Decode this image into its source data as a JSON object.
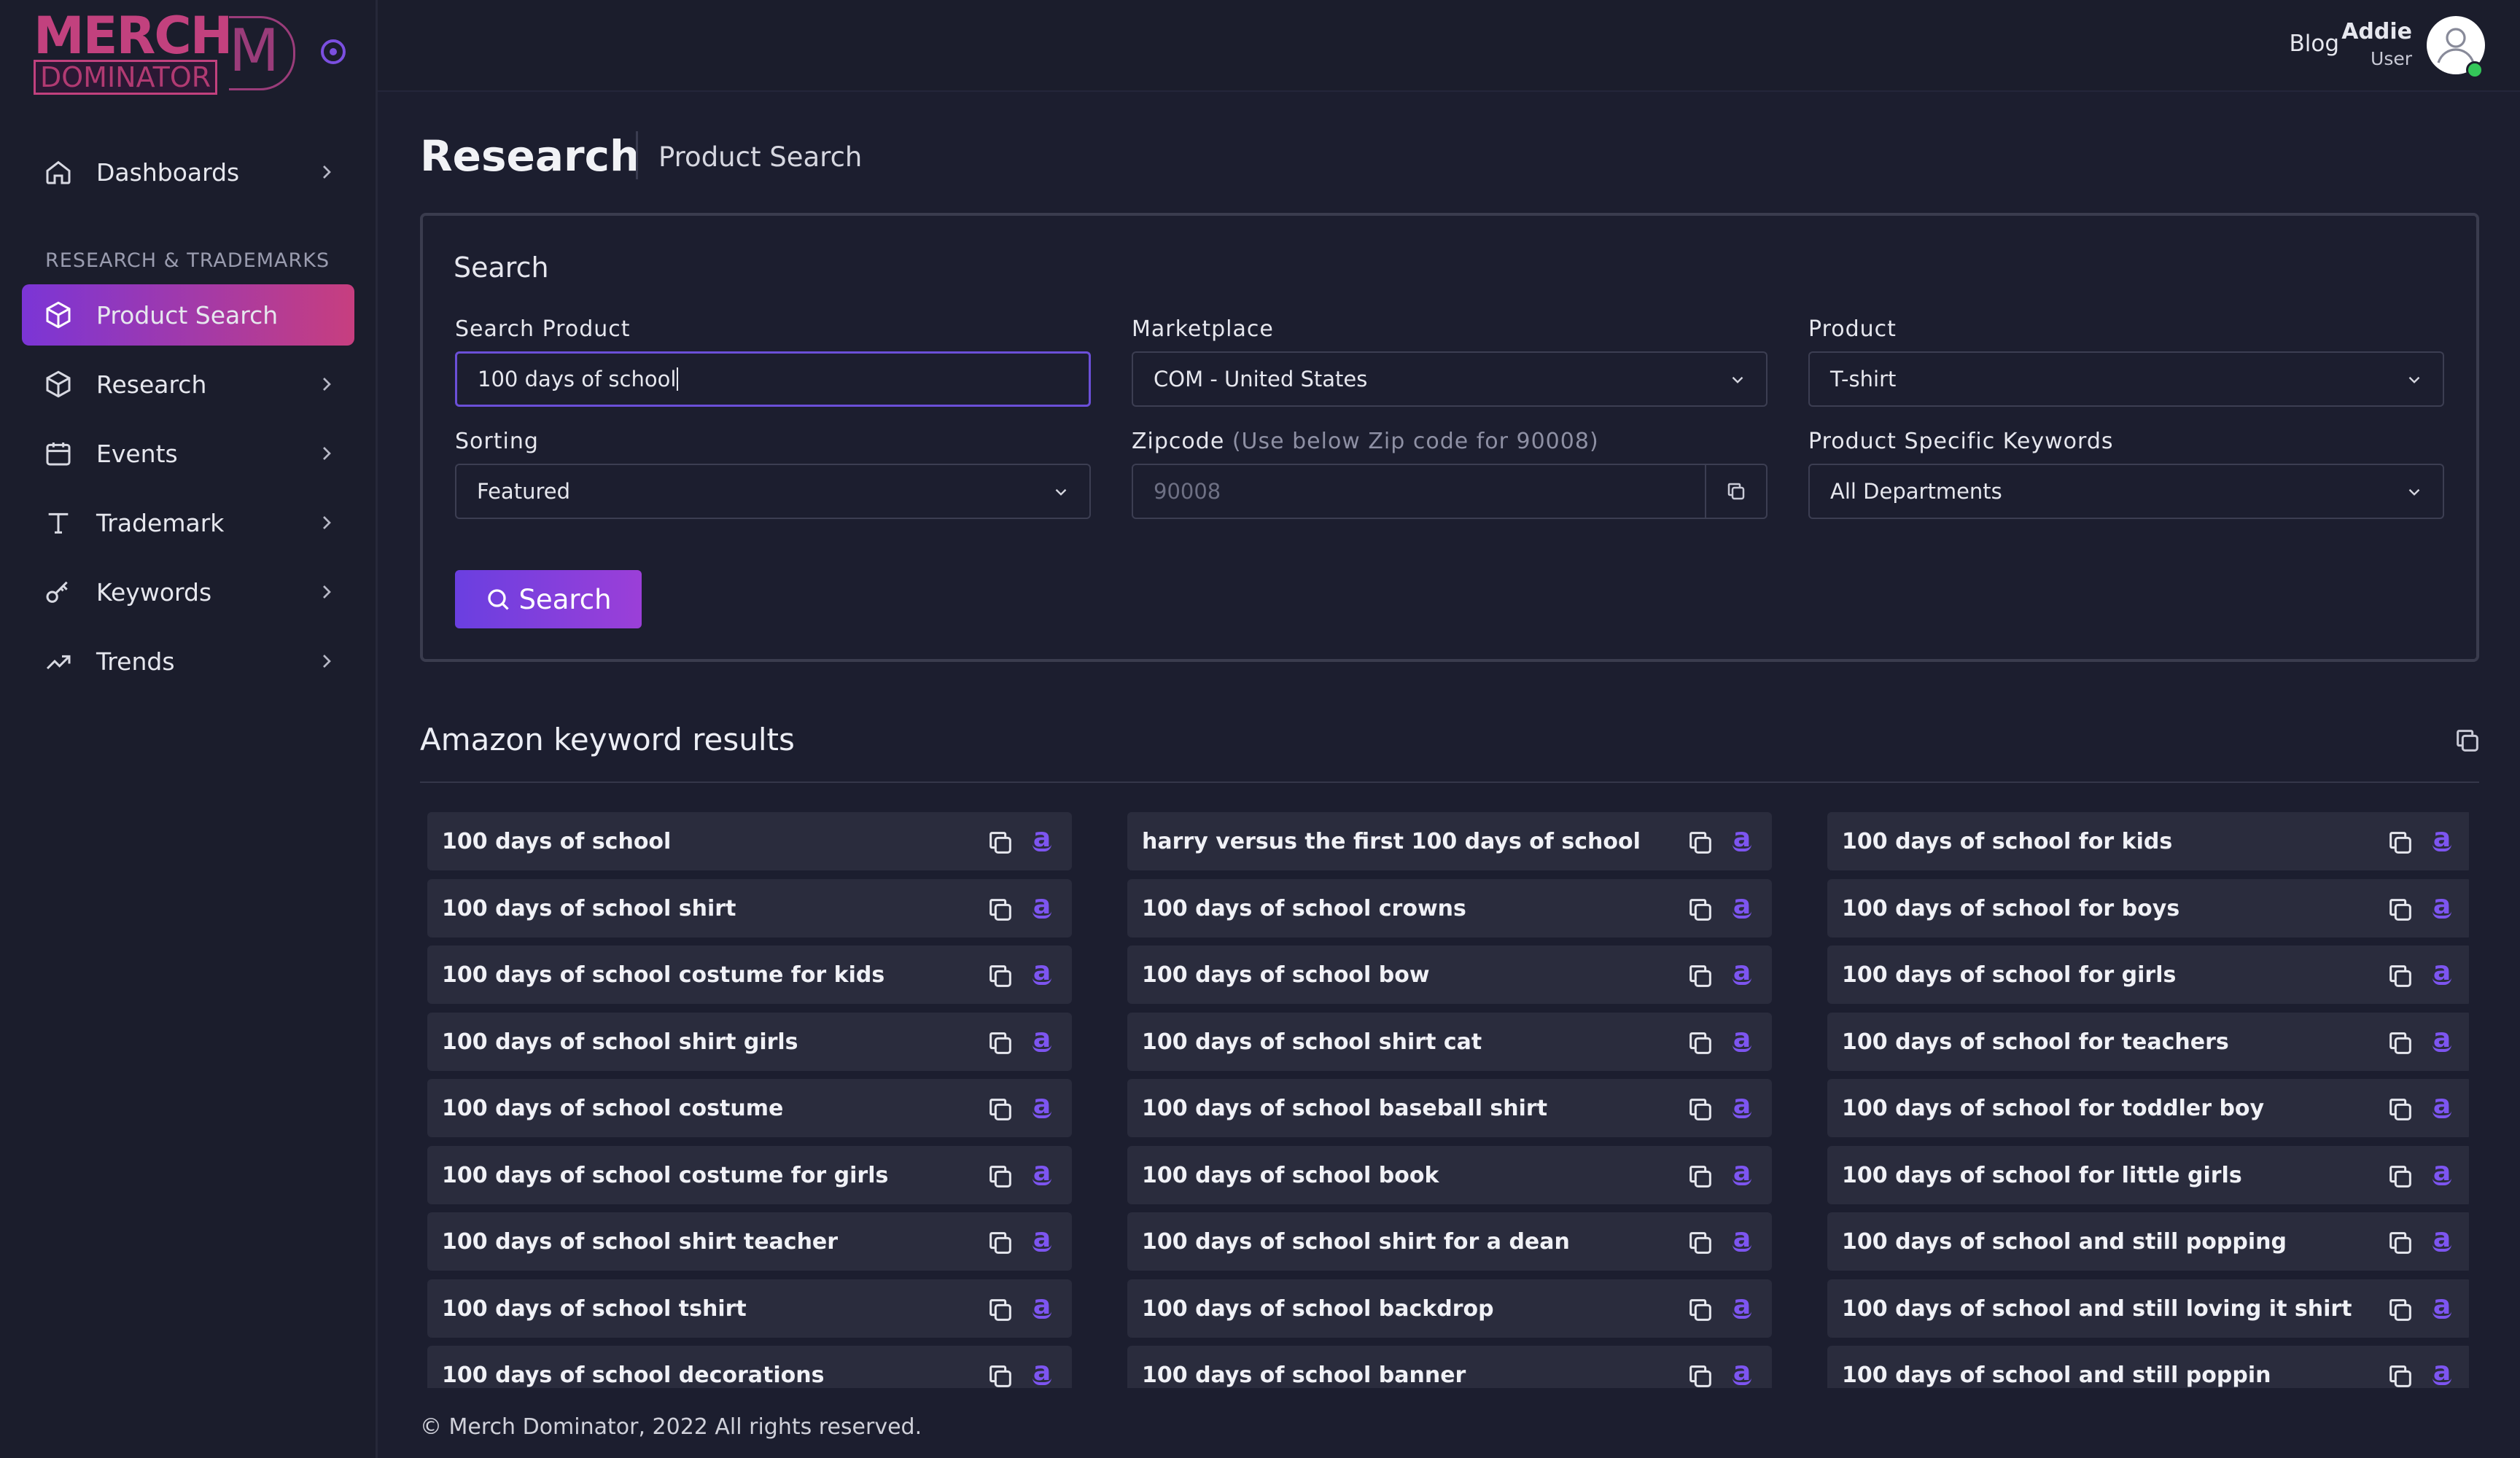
{
  "brand": {
    "line1": "MERCH",
    "line2": "DOMINATOR",
    "mark": "M"
  },
  "sidebar": {
    "section_label": "RESEARCH & TRADEMARKS",
    "items": [
      {
        "label": "Dashboards",
        "icon": "home-icon"
      },
      {
        "label": "Product Search",
        "icon": "box-icon",
        "active": true
      },
      {
        "label": "Research",
        "icon": "box-icon"
      },
      {
        "label": "Events",
        "icon": "calendar-icon"
      },
      {
        "label": "Trademark",
        "icon": "type-icon"
      },
      {
        "label": "Keywords",
        "icon": "key-icon"
      },
      {
        "label": "Trends",
        "icon": "trending-up-icon"
      }
    ]
  },
  "topbar": {
    "blog": "Blog",
    "user_name": "Addie",
    "user_role": "User"
  },
  "page": {
    "title": "Research",
    "subtitle": "Product Search"
  },
  "search": {
    "title": "Search",
    "search_product_label": "Search Product",
    "search_product_value": "100 days of school",
    "marketplace_label": "Marketplace",
    "marketplace_value": "COM - United States",
    "product_label": "Product",
    "product_value": "T-shirt",
    "sorting_label": "Sorting",
    "sorting_value": "Featured",
    "zipcode_label": "Zipcode",
    "zipcode_hint": "(Use below Zip code for 90008)",
    "zipcode_placeholder": "90008",
    "keywords_label": "Product Specific Keywords",
    "keywords_value": "All Departments",
    "button": "Search"
  },
  "results": {
    "title": "Amazon keyword results",
    "columns": [
      [
        "100 days of school",
        "100 days of school shirt",
        "100 days of school costume for kids",
        "100 days of school shirt girls",
        "100 days of school costume",
        "100 days of school costume for girls",
        "100 days of school shirt teacher",
        "100 days of school tshirt",
        "100 days of school decorations"
      ],
      [
        "harry versus the first 100 days of school",
        "100 days of school crowns",
        "100 days of school bow",
        "100 days of school shirt cat",
        "100 days of school baseball shirt",
        "100 days of school book",
        "100 days of school shirt for a dean",
        "100 days of school backdrop",
        "100 days of school banner"
      ],
      [
        "100 days of school for kids",
        "100 days of school for boys",
        "100 days of school for girls",
        "100 days of school for teachers",
        "100 days of school for toddler boy",
        "100 days of school for little girls",
        "100 days of school and still popping",
        "100 days of school and still loving it shirt",
        "100 days of school and still poppin"
      ]
    ]
  },
  "footer": "© Merch Dominator, 2022 All rights reserved.",
  "colors": {
    "accent": "#6a3fe0",
    "active_gradient_start": "#7b35d6",
    "active_gradient_end": "#c73e7f",
    "brand": "#c2417e",
    "amazon_icon": "#7d55f0"
  }
}
